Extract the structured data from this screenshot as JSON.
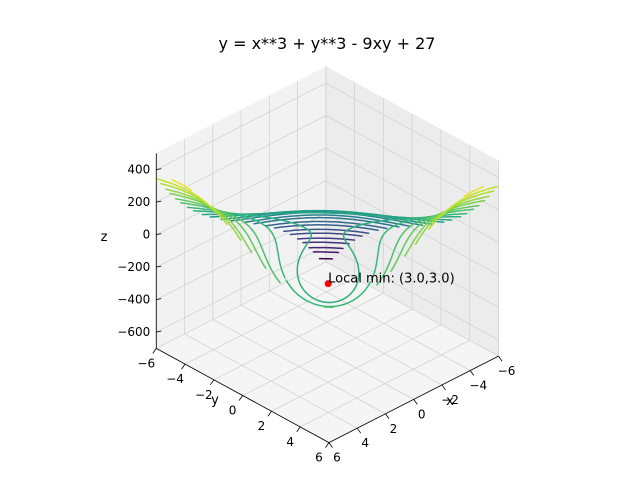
{
  "chart_data": {
    "type": "contour3d",
    "title": "y = x**3 + y**3 - 9xy + 27",
    "function": "x**3 + y**3 - 9*x*y + 27",
    "xlabel": "x",
    "ylabel": "y",
    "zlabel": "z",
    "xlim": [
      -6,
      6
    ],
    "ylim": [
      -6,
      6
    ],
    "zlim": [
      -700,
      500
    ],
    "xticks": [
      "−6",
      "−4",
      "−2",
      "0",
      "2",
      "4",
      "6"
    ],
    "yticks": [
      "−6",
      "−4",
      "−2",
      "0",
      "2",
      "4",
      "6"
    ],
    "zticks": [
      "−600",
      "−400",
      "−200",
      "0",
      "200",
      "400"
    ],
    "contour_levels": [
      -660,
      -600,
      -560,
      -510,
      -470,
      -420,
      -380,
      -330,
      -290,
      -240,
      -200,
      -150,
      -110,
      -60,
      -20,
      30,
      70,
      120,
      160,
      210,
      250,
      300,
      340,
      390,
      430
    ],
    "colormap": "viridis",
    "grid": true,
    "annotation": {
      "label": "Local min: (3.0,3.0)",
      "x": 3.0,
      "y": 3.0,
      "z": 0,
      "marker_color": "#ff0000"
    }
  }
}
